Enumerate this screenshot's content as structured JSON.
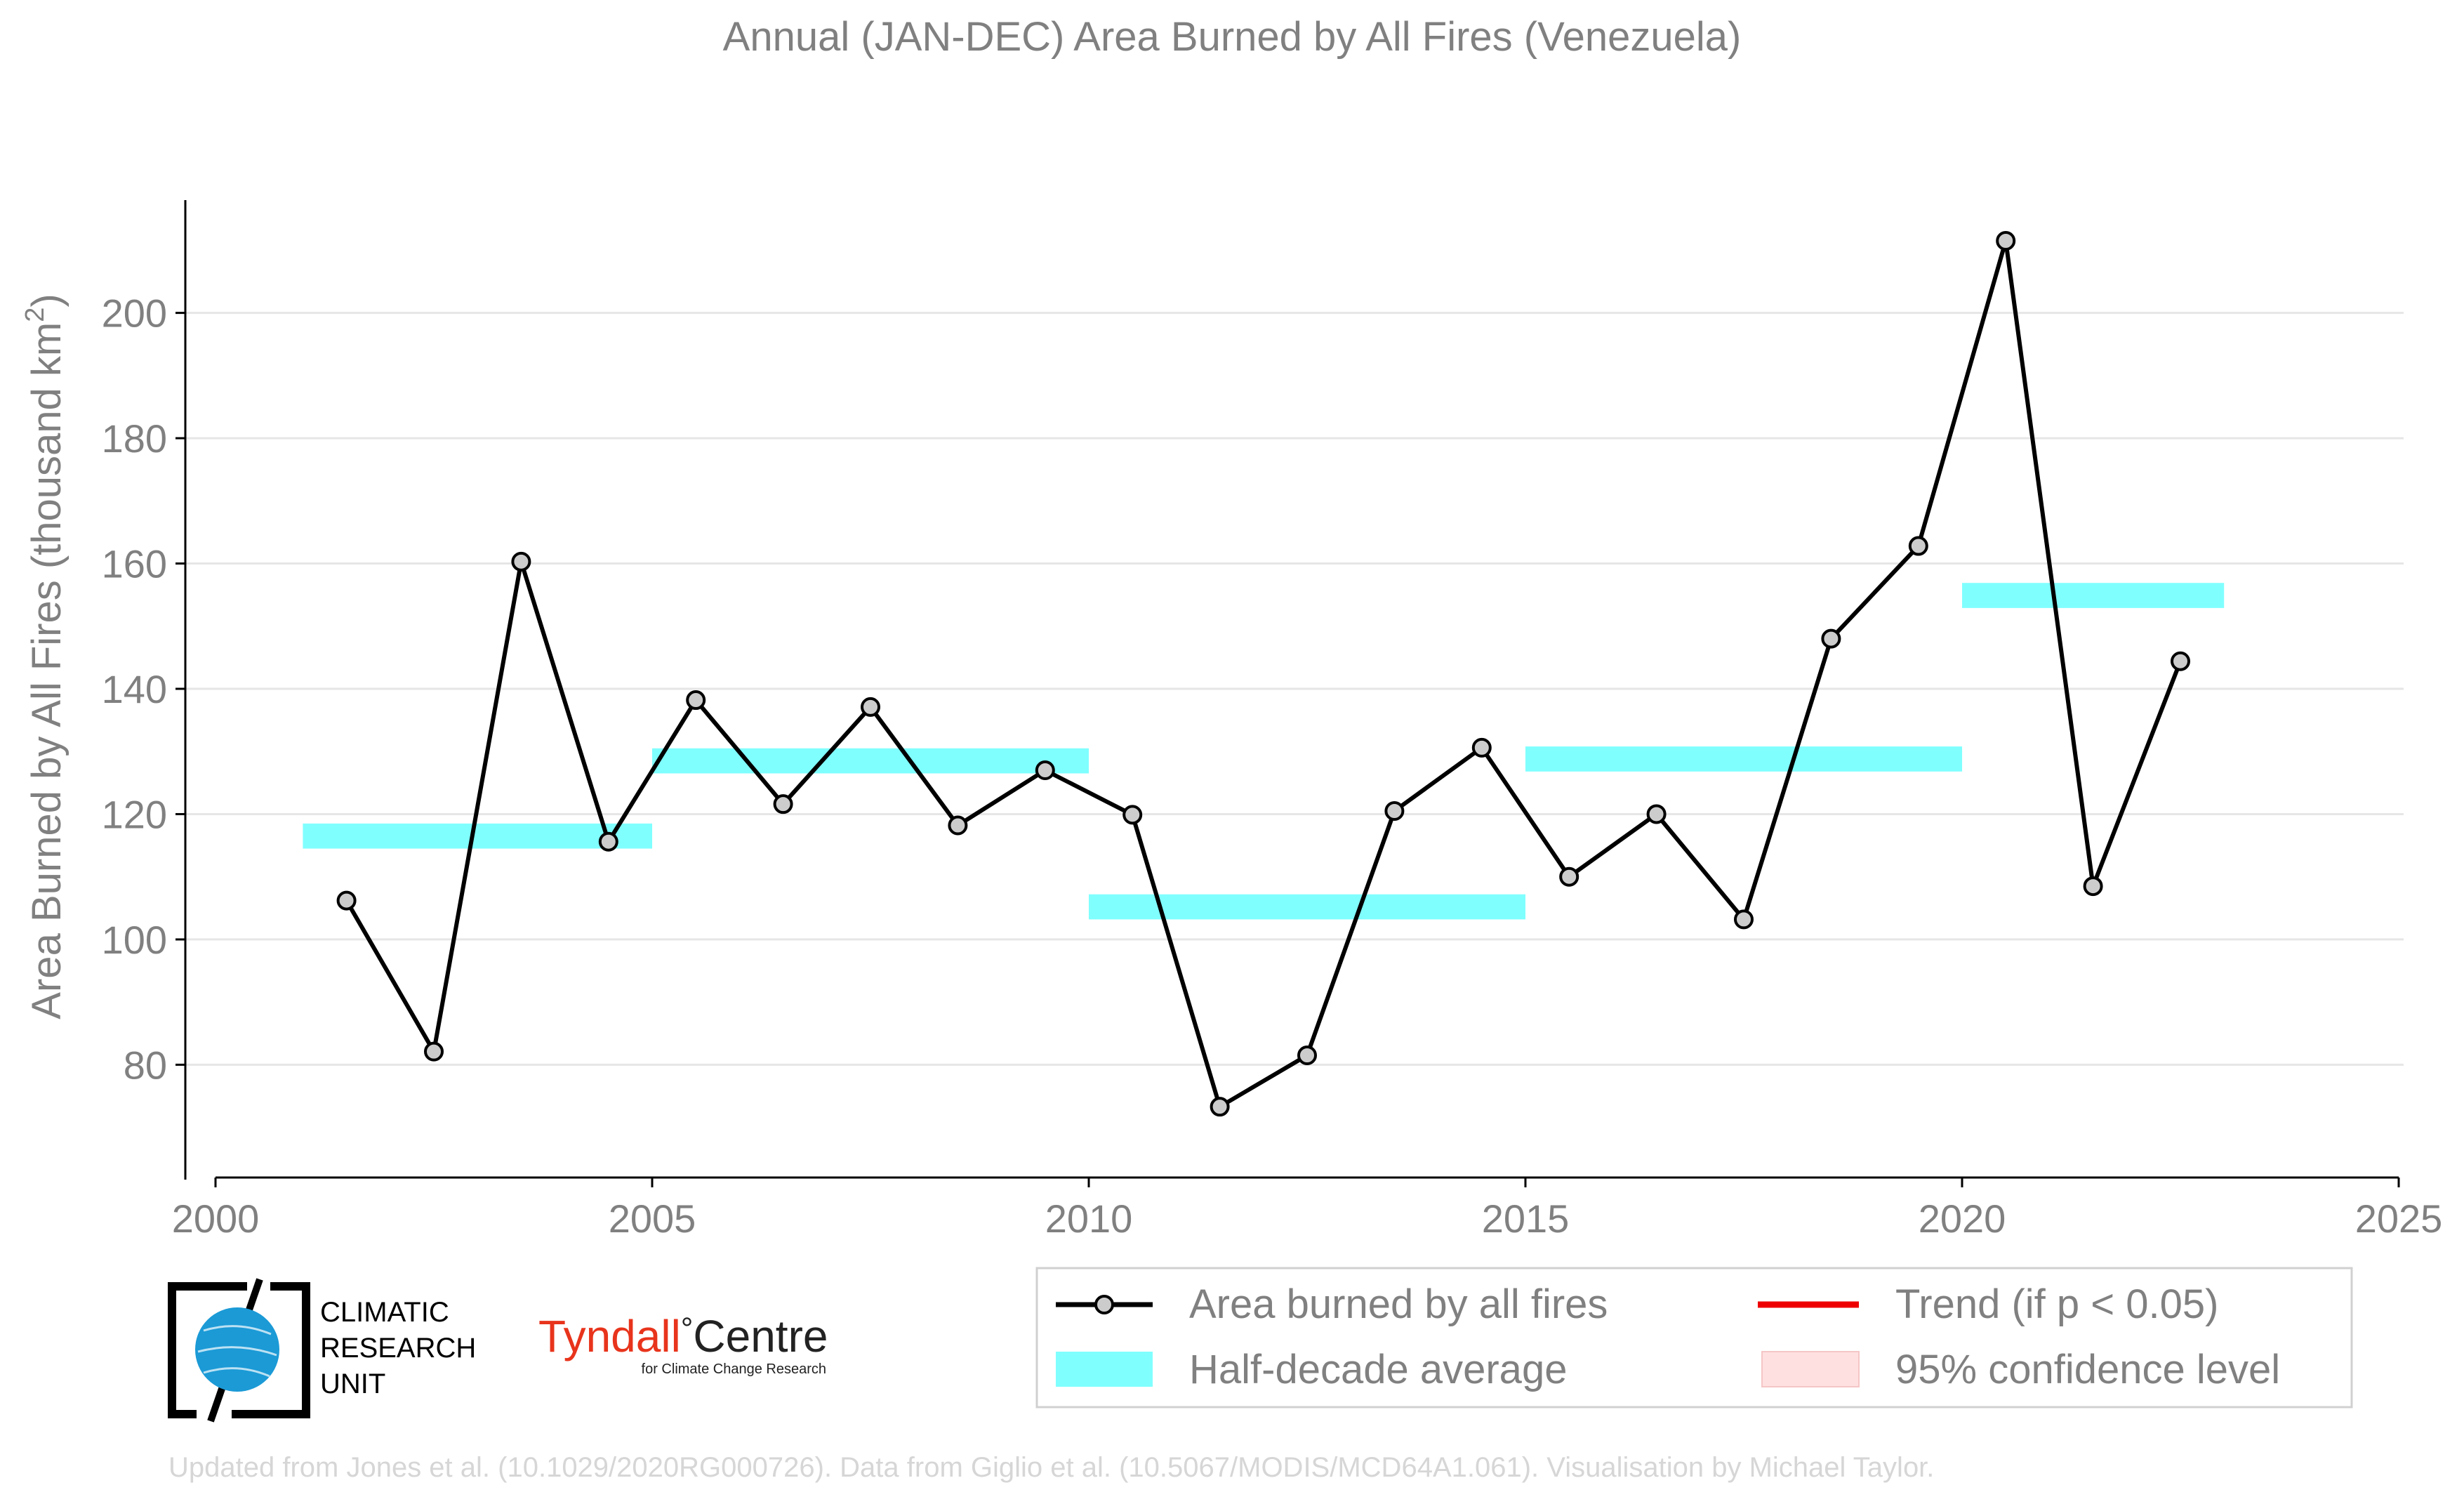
{
  "chart_data": {
    "type": "line",
    "title": "Annual (JAN-DEC) Area Burned by All Fires (Venezuela)",
    "xlabel": "",
    "ylabel_main": "Area Burned by All Fires (thousand km",
    "ylabel_sup": "2",
    "ylabel_close": ")",
    "xlim": [
      2000,
      2025
    ],
    "ylim": [
      62,
      218
    ],
    "x_ticks": [
      2000,
      2005,
      2010,
      2015,
      2020,
      2025
    ],
    "y_ticks": [
      80,
      100,
      120,
      140,
      160,
      180,
      200
    ],
    "grid": true,
    "legend_position": "bottom-right",
    "series": [
      {
        "name": "Area burned by all fires",
        "color": "#000000",
        "marker_fill": "#cccccc",
        "x": [
          2001.5,
          2002.5,
          2003.5,
          2004.5,
          2005.5,
          2006.5,
          2007.5,
          2008.5,
          2009.5,
          2010.5,
          2011.5,
          2012.5,
          2013.5,
          2014.5,
          2015.5,
          2016.5,
          2017.5,
          2018.5,
          2019.5,
          2020.5,
          2021.5,
          2022.5
        ],
        "y": [
          106.2,
          82.1,
          160.3,
          115.6,
          138.2,
          121.6,
          137.1,
          118.2,
          127.0,
          119.9,
          73.3,
          81.5,
          120.5,
          130.6,
          110.0,
          120.0,
          103.2,
          148.0,
          162.8,
          211.5,
          108.5,
          144.4
        ]
      }
    ],
    "half_decade_average": {
      "name": "Half-decade average",
      "color": "#80ffff",
      "bands": [
        {
          "x0": 2001,
          "x1": 2005,
          "y": 116.5
        },
        {
          "x0": 2005,
          "x1": 2010,
          "y": 128.5
        },
        {
          "x0": 2010,
          "x1": 2015,
          "y": 105.2
        },
        {
          "x0": 2015,
          "x1": 2020,
          "y": 128.8
        },
        {
          "x0": 2020,
          "x1": 2023,
          "y": 154.9
        }
      ]
    },
    "legend": {
      "entries": [
        {
          "label": "Area burned by all fires",
          "kind": "line-marker",
          "color": "#000000"
        },
        {
          "label": "Trend (if p < 0.05)",
          "kind": "line",
          "color": "#ee0000"
        },
        {
          "label": "Half-decade average",
          "kind": "band",
          "color": "#80ffff"
        },
        {
          "label": "95% confidence level",
          "kind": "band",
          "color": "#ffe0e0"
        }
      ]
    }
  },
  "logos": {
    "cru": [
      "CLIMATIC",
      "RESEARCH",
      "UNIT"
    ],
    "tyndall_main": "Tyndall",
    "tyndall_degree": "°",
    "tyndall_centre": "Centre",
    "tyndall_sub": "for Climate Change Research"
  },
  "footer": "Updated from Jones et al. (10.1029/2020RG000726). Data from Giglio et al. (10.5067/MODIS/MCD64A1.061). Visualisation by Michael Taylor."
}
